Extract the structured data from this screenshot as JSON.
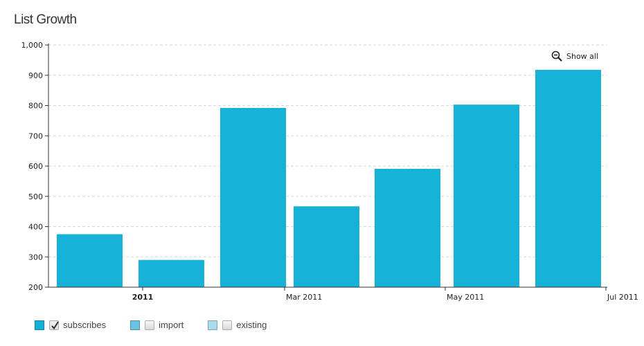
{
  "title": "List Growth",
  "show_all": {
    "label": "Show all",
    "icon": "zoom-out-icon"
  },
  "colors": {
    "bar": "#15b1d6",
    "grid": "#d6d6d6",
    "axis": "#333333"
  },
  "chart_data": {
    "type": "bar",
    "ylim": [
      200,
      1000
    ],
    "yticks": [
      "200",
      "300",
      "400",
      "500",
      "600",
      "700",
      "800",
      "900",
      "1,000"
    ],
    "xticks": [
      {
        "label": "2011",
        "bold": true
      },
      {
        "label": "Mar 2011",
        "bold": false
      },
      {
        "label": "May 2011",
        "bold": false
      },
      {
        "label": "Jul 2011",
        "bold": false
      }
    ],
    "grid": "horizontal-dashed",
    "legend_position": "bottom-left",
    "series": [
      {
        "name": "subscribes",
        "color": "#15b1d6",
        "checked": true,
        "values": [
          375,
          290,
          792,
          467,
          591,
          803,
          918
        ]
      },
      {
        "name": "import",
        "color": "#69c3e2",
        "checked": false,
        "values": []
      },
      {
        "name": "existing",
        "color": "#a9dcee",
        "checked": false,
        "values": []
      }
    ]
  }
}
